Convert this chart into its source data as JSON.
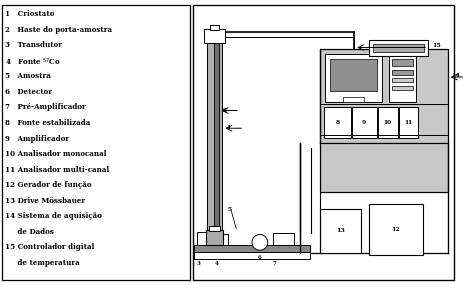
{
  "bg_color": "#ffffff",
  "figsize": [
    4.64,
    2.85
  ],
  "dpi": 100,
  "label_texts": [
    "1   Criostato",
    "2   Haste do porta-amostra",
    "3   Transdutor",
    "4   Fonte $^{57}$Co",
    "5   Amostra",
    "6   Detector",
    "7   Pré-Amplificador",
    "8   Fonte estabilizada",
    "9   Amplificador",
    "10 Analisador monocanal",
    "11 Analisador multi-canal",
    "12 Gerador de função",
    "13 Drive Mössbauer",
    "14 Sistema de aquisição",
    "     de Dados",
    "15 Controlador digital",
    "     de temperatura"
  ]
}
